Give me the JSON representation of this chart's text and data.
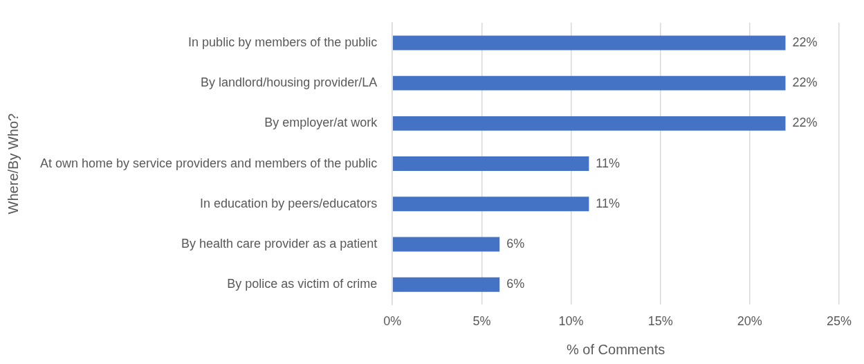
{
  "chart_data": {
    "type": "bar",
    "orientation": "horizontal",
    "xlabel": "% of Comments",
    "ylabel": "Where/By Who?",
    "categories": [
      "In public by members of the public",
      "By landlord/housing provider/LA",
      "By employer/at work",
      "At own home by service providers and members of the public",
      "In education by peers/educators",
      "By health care provider as a patient",
      "By police as victim of crime"
    ],
    "values": [
      22,
      22,
      22,
      11,
      11,
      6,
      6
    ],
    "value_labels": [
      "22%",
      "22%",
      "22%",
      "11%",
      "11%",
      "6%",
      "6%"
    ],
    "color": "#4472c4",
    "xlim": [
      0,
      25
    ],
    "xticks": [
      {
        "value": 0,
        "label": "0%"
      },
      {
        "value": 5,
        "label": "5%"
      },
      {
        "value": 10,
        "label": "10%"
      },
      {
        "value": 15,
        "label": "15%"
      },
      {
        "value": 20,
        "label": "20%"
      },
      {
        "value": 25,
        "label": "25%"
      }
    ],
    "grid": "x"
  }
}
